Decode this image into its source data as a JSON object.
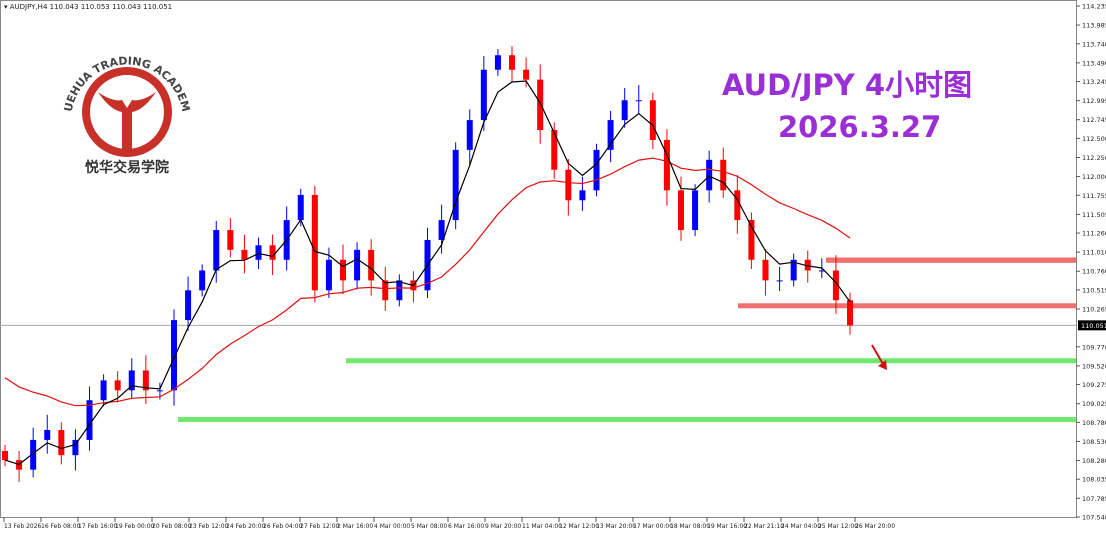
{
  "header": {
    "symbol": "AUDJPY,H4",
    "ohlc": "110.043 110.053 110.043 110.051"
  },
  "overlay": {
    "title": "AUD/JPY 4小时图",
    "date": "2026.3.27"
  },
  "logo": {
    "text_en": "YUEHUA TRADING ACADEMY",
    "text_cn": "悦华交易学院",
    "color": "#c8302a"
  },
  "colors": {
    "bull": "#0000ff",
    "bear": "#ff0000",
    "ma_fast": "#000000",
    "ma_slow": "#e01010",
    "resistance": "#f07070",
    "support": "#70e870",
    "title": "#9b2fd6"
  },
  "chart_data": {
    "type": "candlestick",
    "ylim": [
      107.54,
      114.235
    ],
    "y_ticks": [
      "114.235",
      "113.985",
      "113.740",
      "113.490",
      "113.245",
      "112.995",
      "112.745",
      "112.500",
      "112.250",
      "112.000",
      "111.755",
      "111.505",
      "111.260",
      "111.010",
      "110.760",
      "110.515",
      "110.265",
      "109.770",
      "109.520",
      "109.275",
      "109.025",
      "108.780",
      "108.530",
      "108.280",
      "108.035",
      "107.785",
      "107.540"
    ],
    "current_price": "110.051",
    "x_ticks": [
      "13 Feb 2026",
      "16 Feb 08:00",
      "17 Feb 16:00",
      "19 Feb 00:00",
      "20 Feb 08:00",
      "23 Feb 12:00",
      "24 Feb 20:00",
      "26 Feb 04:00",
      "27 Feb 12:00",
      "2 Mar 16:00",
      "4 Mar 00:00",
      "5 Mar 08:00",
      "6 Mar 16:00",
      "9 Mar 20:00",
      "11 Mar 04:00",
      "12 Mar 12:00",
      "13 Mar 20:00",
      "17 Mar 00:00",
      "18 Mar 08:00",
      "19 Mar 16:00",
      "22 Mar 21:10",
      "24 Mar 04:00",
      "25 Mar 12:00",
      "26 Mar 20:00"
    ],
    "closes": [
      108.285,
      108.16,
      108.55,
      108.68,
      108.35,
      108.55,
      109.07,
      109.33,
      109.2,
      109.46,
      109.2,
      109.2,
      110.12,
      110.51,
      110.77,
      111.3,
      111.04,
      110.91,
      111.1,
      110.91,
      111.43,
      111.76,
      110.51,
      110.91,
      110.64,
      111.04,
      110.64,
      110.38,
      110.64,
      110.51,
      111.17,
      111.43,
      112.35,
      112.74,
      113.4,
      113.59,
      113.4,
      113.27,
      112.61,
      112.09,
      111.69,
      111.82,
      112.35,
      112.74,
      113.0,
      113.0,
      112.48,
      111.82,
      111.3,
      111.82,
      112.22,
      111.82,
      111.43,
      110.91,
      110.64,
      110.64,
      110.91,
      110.77,
      110.77,
      110.38,
      110.05
    ],
    "zones": [
      {
        "type": "resistance",
        "from": 110.87,
        "to": 110.94
      },
      {
        "type": "resistance",
        "from": 110.29,
        "to": 110.34
      },
      {
        "type": "support",
        "from": 109.57,
        "to": 109.62
      },
      {
        "type": "support",
        "from": 108.8,
        "to": 108.85
      }
    ]
  }
}
